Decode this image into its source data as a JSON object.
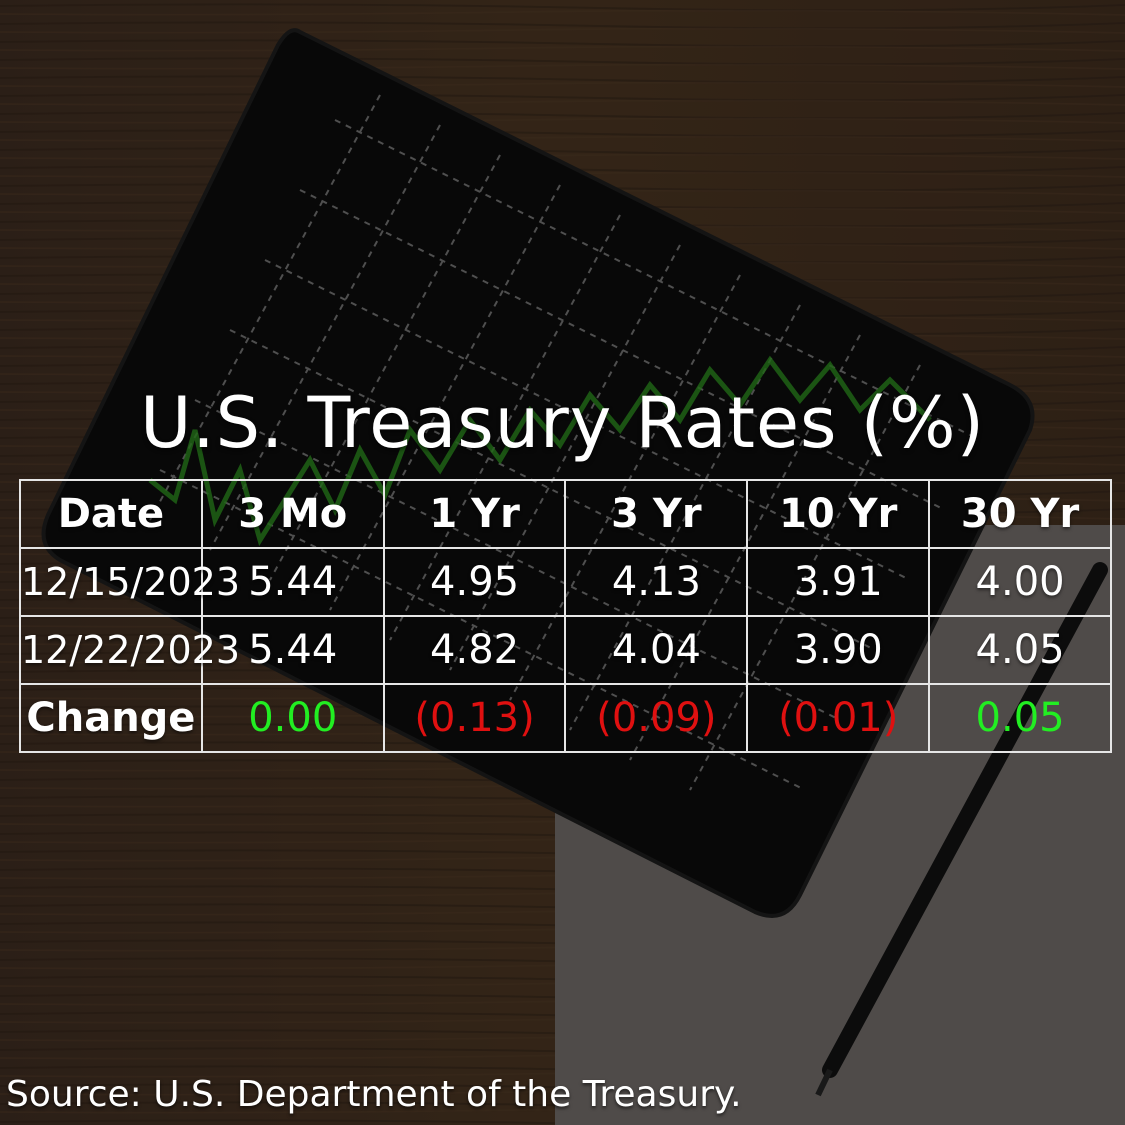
{
  "title": "U.S. Treasury Rates (%)",
  "source": "Source: U.S. Department of the Treasury.",
  "colors": {
    "positive": "#22ee22",
    "negative": "#e01010",
    "text": "#ffffff",
    "grid": "#e6e6e6"
  },
  "chart_data": {
    "type": "table",
    "columns": [
      "Date",
      "3 Mo",
      "1 Yr",
      "3 Yr",
      "10 Yr",
      "30 Yr"
    ],
    "rows": [
      {
        "label": "12/15/2023",
        "values": [
          "5.44",
          "4.95",
          "4.13",
          "3.91",
          "4.00"
        ]
      },
      {
        "label": "12/22/2023",
        "values": [
          "5.44",
          "4.82",
          "4.04",
          "3.90",
          "4.05"
        ]
      }
    ],
    "change": {
      "label": "Change",
      "values": [
        "0.00",
        "(0.13)",
        "(0.09)",
        "(0.01)",
        "0.05"
      ],
      "signs": [
        "positive",
        "negative",
        "negative",
        "negative",
        "positive"
      ]
    }
  }
}
